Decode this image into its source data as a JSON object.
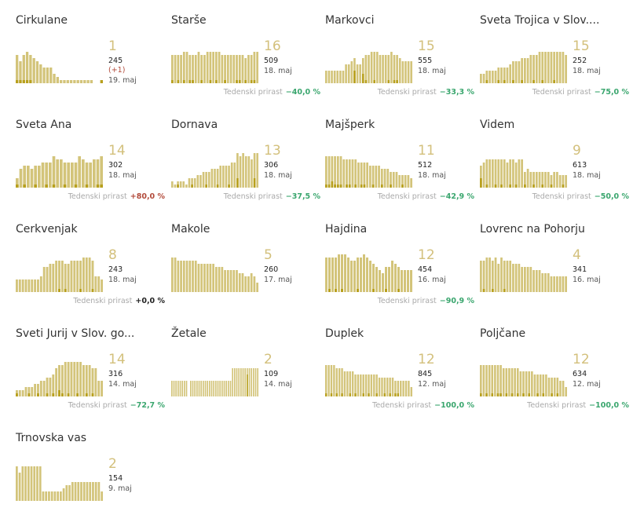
{
  "growth_label": "Tedenski prirast",
  "colors": {
    "bar": "#d3c47a",
    "bar_dark": "#b8a01e",
    "accent_number": "#d3c07c",
    "negative": "#3aa66e",
    "positive": "#b24a3a"
  },
  "chart_data": [
    {
      "type": "bar",
      "title": "Cirkulane",
      "value": "1",
      "total": "245",
      "delta": "(+1)",
      "date": "19. maj",
      "growth": "",
      "values": [
        9,
        7,
        9,
        10,
        9,
        8,
        7,
        6,
        5,
        5,
        5,
        3,
        2,
        1,
        1,
        1,
        1,
        1,
        1,
        1,
        1,
        1,
        1,
        0,
        0,
        1
      ],
      "new_cases": [
        1,
        1,
        1,
        1,
        1,
        0,
        0,
        0,
        0,
        0,
        0,
        0,
        0,
        0,
        0,
        0,
        0,
        0,
        0,
        0,
        0,
        0,
        0,
        0,
        0,
        1
      ]
    },
    {
      "type": "bar",
      "title": "Starše",
      "value": "16",
      "total": "509",
      "date": "18. maj",
      "growth": "−40,0 %",
      "growth_sign": "neg",
      "values": [
        9,
        9,
        9,
        9,
        10,
        10,
        9,
        9,
        9,
        10,
        9,
        9,
        10,
        10,
        10,
        10,
        10,
        9,
        9,
        9,
        9,
        9,
        9,
        9,
        9,
        8,
        9,
        9,
        10,
        10
      ],
      "new_cases": [
        1,
        0,
        1,
        0,
        1,
        0,
        1,
        1,
        0,
        0,
        1,
        0,
        0,
        1,
        0,
        1,
        0,
        0,
        1,
        0,
        0,
        0,
        1,
        1,
        0,
        1,
        0,
        1,
        1,
        0
      ]
    },
    {
      "type": "bar",
      "title": "Markovci",
      "value": "15",
      "total": "555",
      "date": "18. maj",
      "growth": "−33,3 %",
      "growth_sign": "neg",
      "values": [
        4,
        4,
        4,
        4,
        4,
        4,
        4,
        6,
        6,
        7,
        8,
        6,
        6,
        8,
        9,
        9,
        10,
        10,
        10,
        9,
        9,
        9,
        9,
        10,
        9,
        9,
        8,
        7,
        7,
        7,
        7
      ],
      "new_cases": [
        0,
        0,
        0,
        0,
        0,
        0,
        0,
        0,
        0,
        0,
        4,
        0,
        0,
        3,
        1,
        0,
        0,
        1,
        0,
        0,
        0,
        0,
        1,
        0,
        1,
        1,
        0,
        0,
        0,
        0,
        0
      ]
    },
    {
      "type": "bar",
      "title": "Sveta Trojica v Slov....",
      "value": "15",
      "total": "252",
      "date": "18. maj",
      "growth": "−75,0 %",
      "growth_sign": "neg",
      "values": [
        3,
        3,
        4,
        4,
        4,
        4,
        5,
        5,
        5,
        5,
        6,
        7,
        7,
        7,
        8,
        8,
        8,
        9,
        9,
        9,
        10,
        10,
        10,
        10,
        10,
        10,
        10,
        10,
        10,
        9
      ],
      "new_cases": [
        0,
        0,
        1,
        0,
        0,
        0,
        1,
        0,
        1,
        0,
        0,
        1,
        0,
        0,
        1,
        0,
        0,
        0,
        1,
        0,
        0,
        1,
        0,
        0,
        0,
        1,
        0,
        0,
        0,
        0
      ]
    },
    {
      "type": "bar",
      "title": "Sveta Ana",
      "value": "14",
      "total": "302",
      "date": "18. maj",
      "growth": "+80,0 %",
      "growth_sign": "pos",
      "values": [
        3,
        6,
        7,
        7,
        6,
        7,
        7,
        8,
        8,
        8,
        10,
        9,
        9,
        8,
        8,
        8,
        8,
        10,
        9,
        8,
        8,
        9,
        9,
        10
      ],
      "new_cases": [
        1,
        0,
        1,
        0,
        0,
        1,
        0,
        0,
        1,
        0,
        1,
        0,
        0,
        1,
        0,
        0,
        1,
        0,
        0,
        1,
        0,
        0,
        1,
        1
      ]
    },
    {
      "type": "bar",
      "title": "Dornava",
      "value": "13",
      "total": "306",
      "date": "18. maj",
      "growth": "−37,5 %",
      "growth_sign": "neg",
      "values": [
        2,
        1,
        2,
        2,
        2,
        1,
        3,
        3,
        3,
        4,
        4,
        5,
        5,
        5,
        6,
        6,
        6,
        7,
        7,
        7,
        7,
        8,
        8,
        11,
        10,
        11,
        10,
        10,
        9,
        11,
        11
      ],
      "new_cases": [
        0,
        0,
        1,
        0,
        0,
        0,
        0,
        1,
        0,
        0,
        0,
        0,
        1,
        0,
        0,
        0,
        1,
        0,
        0,
        0,
        1,
        0,
        0,
        3,
        0,
        0,
        0,
        0,
        0,
        3,
        0
      ]
    },
    {
      "type": "bar",
      "title": "Majšperk",
      "value": "11",
      "total": "512",
      "date": "18. maj",
      "growth": "−42,9 %",
      "growth_sign": "neg",
      "values": [
        10,
        10,
        10,
        10,
        10,
        10,
        9,
        9,
        9,
        9,
        9,
        8,
        8,
        8,
        8,
        7,
        7,
        7,
        7,
        6,
        6,
        6,
        5,
        5,
        5,
        4,
        4,
        4,
        4,
        3
      ],
      "new_cases": [
        1,
        1,
        2,
        1,
        1,
        1,
        0,
        1,
        1,
        0,
        1,
        0,
        1,
        1,
        0,
        0,
        1,
        0,
        0,
        1,
        0,
        0,
        1,
        0,
        0,
        0,
        1,
        0,
        0,
        0
      ]
    },
    {
      "type": "bar",
      "title": "Videm",
      "value": "9",
      "total": "613",
      "date": "18. maj",
      "growth": "−50,0 %",
      "growth_sign": "neg",
      "values": [
        7,
        8,
        9,
        9,
        9,
        9,
        9,
        9,
        9,
        8,
        9,
        9,
        8,
        9,
        9,
        5,
        6,
        5,
        5,
        5,
        5,
        5,
        5,
        5,
        4,
        5,
        5,
        4,
        4,
        4
      ],
      "new_cases": [
        3,
        0,
        1,
        0,
        0,
        1,
        0,
        1,
        0,
        0,
        1,
        0,
        1,
        0,
        0,
        1,
        0,
        0,
        1,
        0,
        0,
        1,
        0,
        0,
        1,
        0,
        0,
        0,
        1,
        0
      ]
    },
    {
      "type": "bar",
      "title": "Cerkvenjak",
      "value": "8",
      "total": "243",
      "date": "18. maj",
      "growth": "+0,0 %",
      "growth_sign": "zero",
      "values": [
        4,
        4,
        4,
        4,
        4,
        4,
        4,
        4,
        5,
        8,
        8,
        9,
        9,
        10,
        10,
        10,
        9,
        9,
        10,
        10,
        10,
        10,
        11,
        11,
        11,
        10,
        5,
        5,
        4
      ],
      "new_cases": [
        0,
        0,
        0,
        0,
        0,
        0,
        0,
        0,
        0,
        0,
        0,
        0,
        0,
        0,
        1,
        0,
        1,
        0,
        0,
        0,
        0,
        1,
        0,
        0,
        0,
        1,
        0,
        0,
        0
      ]
    },
    {
      "type": "bar",
      "title": "Makole",
      "value": "5",
      "total": "260",
      "date": "17. maj",
      "growth": "",
      "values": [
        11,
        11,
        10,
        10,
        10,
        10,
        10,
        10,
        10,
        9,
        9,
        9,
        9,
        9,
        9,
        8,
        8,
        8,
        7,
        7,
        7,
        7,
        7,
        6,
        6,
        5,
        5,
        6,
        5,
        3
      ],
      "new_cases": [
        0,
        0,
        0,
        0,
        0,
        0,
        0,
        0,
        0,
        0,
        0,
        0,
        0,
        0,
        0,
        0,
        0,
        0,
        0,
        0,
        0,
        0,
        0,
        0,
        0,
        0,
        0,
        0,
        0,
        0
      ]
    },
    {
      "type": "bar",
      "title": "Hajdina",
      "value": "12",
      "total": "454",
      "date": "16. maj",
      "growth": "−90,9 %",
      "growth_sign": "neg",
      "values": [
        11,
        11,
        11,
        11,
        12,
        12,
        12,
        11,
        10,
        10,
        11,
        11,
        12,
        11,
        10,
        9,
        8,
        7,
        6,
        8,
        8,
        10,
        9,
        8,
        7,
        7,
        7,
        7
      ],
      "new_cases": [
        0,
        1,
        0,
        1,
        0,
        1,
        0,
        0,
        0,
        0,
        1,
        0,
        0,
        0,
        0,
        1,
        0,
        0,
        0,
        1,
        0,
        0,
        0,
        1,
        0,
        0,
        0,
        0
      ]
    },
    {
      "type": "bar",
      "title": "Lovrenc na Pohorju",
      "value": "4",
      "total": "341",
      "date": "16. maj",
      "growth": "",
      "values": [
        10,
        10,
        11,
        11,
        10,
        11,
        9,
        11,
        10,
        10,
        10,
        9,
        9,
        9,
        8,
        8,
        8,
        8,
        7,
        7,
        7,
        6,
        6,
        6,
        5,
        5,
        5,
        5,
        5,
        5
      ],
      "new_cases": [
        0,
        1,
        0,
        0,
        1,
        0,
        0,
        0,
        1,
        0,
        0,
        0,
        0,
        0,
        0,
        0,
        0,
        0,
        0,
        0,
        0,
        0,
        0,
        0,
        0,
        0,
        0,
        0,
        0,
        0
      ]
    },
    {
      "type": "bar",
      "title": "Sveti Jurij v Slov. go...",
      "value": "14",
      "total": "316",
      "date": "14. maj",
      "growth": "−72,7 %",
      "growth_sign": "neg",
      "values": [
        2,
        2,
        2,
        3,
        3,
        3,
        4,
        4,
        5,
        5,
        6,
        6,
        7,
        9,
        10,
        10,
        11,
        11,
        11,
        11,
        11,
        11,
        10,
        10,
        10,
        9,
        9,
        5,
        5
      ],
      "new_cases": [
        1,
        0,
        0,
        0,
        1,
        0,
        0,
        1,
        0,
        0,
        1,
        0,
        1,
        0,
        2,
        1,
        0,
        1,
        0,
        0,
        1,
        0,
        0,
        1,
        0,
        1,
        0,
        0,
        0
      ]
    },
    {
      "type": "bar",
      "title": "Žetale",
      "value": "2",
      "total": "109",
      "date": "14. maj",
      "growth": "",
      "values": [
        5,
        5,
        5,
        5,
        5,
        5,
        5,
        5,
        0,
        5,
        5,
        5,
        5,
        5,
        5,
        5,
        5,
        5,
        5,
        5,
        5,
        5,
        5,
        5,
        5,
        5,
        5,
        5,
        5,
        9,
        9,
        9,
        9,
        9,
        9,
        9,
        9,
        9,
        9,
        9,
        9,
        9
      ],
      "new_cases": [
        0,
        0,
        0,
        0,
        0,
        0,
        0,
        0,
        0,
        0,
        0,
        0,
        0,
        0,
        0,
        0,
        0,
        0,
        0,
        0,
        0,
        0,
        0,
        0,
        0,
        0,
        0,
        0,
        0,
        0,
        0,
        0,
        0,
        0,
        0,
        0,
        7,
        0,
        0,
        0,
        0,
        0
      ]
    },
    {
      "type": "bar",
      "title": "Duplek",
      "value": "12",
      "total": "845",
      "date": "12. maj",
      "growth": "−100,0 %",
      "growth_sign": "neg",
      "values": [
        10,
        10,
        10,
        10,
        9,
        9,
        9,
        8,
        8,
        8,
        8,
        7,
        7,
        7,
        7,
        7,
        7,
        7,
        7,
        7,
        6,
        6,
        6,
        6,
        6,
        6,
        5,
        5,
        5,
        5,
        5,
        5,
        3
      ],
      "new_cases": [
        1,
        0,
        1,
        0,
        1,
        0,
        1,
        0,
        0,
        1,
        0,
        1,
        0,
        0,
        1,
        0,
        1,
        0,
        0,
        1,
        0,
        0,
        1,
        0,
        1,
        0,
        1,
        1,
        0,
        0,
        0,
        0,
        0
      ]
    },
    {
      "type": "bar",
      "title": "Poljčane",
      "value": "12",
      "total": "634",
      "date": "12. maj",
      "growth": "−100,0 %",
      "growth_sign": "neg",
      "values": [
        10,
        10,
        10,
        10,
        10,
        10,
        10,
        10,
        9,
        9,
        9,
        9,
        9,
        9,
        8,
        8,
        8,
        8,
        8,
        7,
        7,
        7,
        7,
        7,
        6,
        6,
        6,
        6,
        5,
        5,
        3
      ],
      "new_cases": [
        1,
        0,
        1,
        0,
        1,
        0,
        1,
        1,
        0,
        1,
        0,
        1,
        0,
        1,
        0,
        1,
        0,
        1,
        0,
        0,
        1,
        0,
        1,
        0,
        0,
        1,
        0,
        1,
        0,
        0,
        0
      ]
    },
    {
      "type": "bar",
      "title": "Trnovska vas",
      "value": "2",
      "total": "154",
      "date": "9. maj",
      "growth": "",
      "values": [
        11,
        9,
        11,
        11,
        11,
        11,
        11,
        11,
        11,
        3,
        3,
        3,
        3,
        3,
        3,
        3,
        4,
        5,
        5,
        6,
        6,
        6,
        6,
        6,
        6,
        6,
        6,
        6,
        6,
        3
      ],
      "new_cases": [
        0,
        0,
        0,
        0,
        0,
        0,
        0,
        0,
        0,
        0,
        0,
        0,
        0,
        0,
        0,
        0,
        0,
        0,
        0,
        0,
        0,
        0,
        0,
        0,
        0,
        0,
        0,
        0,
        0,
        0
      ]
    }
  ]
}
